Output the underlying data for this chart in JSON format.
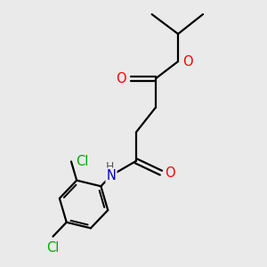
{
  "bg_color": "#eaeaea",
  "atom_colors": {
    "O": "#ff0000",
    "N": "#0000bb",
    "Cl": "#00aa00"
  },
  "bond_color": "#000000",
  "bond_width": 1.6,
  "font_size_atoms": 10.5
}
